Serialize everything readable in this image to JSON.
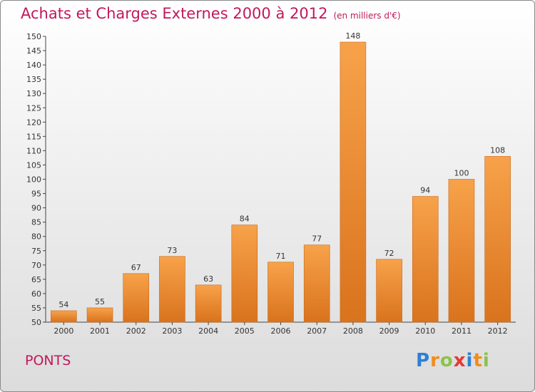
{
  "header": {
    "title": "Achats et Charges Externes 2000 à 2012",
    "unit": "(en milliers d'€)"
  },
  "footer": {
    "commune": "PONTS",
    "logo_letters": [
      "P",
      "r",
      "o",
      "x",
      "i",
      "t",
      "i"
    ],
    "logo_colors": [
      "#2e7fd6",
      "#f28c1e",
      "#8bc34a",
      "#e53935",
      "#2e7fd6",
      "#f28c1e",
      "#8bc34a"
    ]
  },
  "chart_data": {
    "type": "bar",
    "title": "Achats et Charges Externes 2000 à 2012",
    "subtitle": "(en milliers d'€)",
    "categories": [
      "2000",
      "2001",
      "2002",
      "2003",
      "2004",
      "2005",
      "2006",
      "2007",
      "2008",
      "2009",
      "2010",
      "2011",
      "2012"
    ],
    "values": [
      54,
      55,
      67,
      73,
      63,
      84,
      71,
      77,
      148,
      72,
      94,
      100,
      108
    ],
    "ylim": [
      50,
      150
    ],
    "ytick_step": 5,
    "grid": false,
    "bar_color_light": "#f7a24a",
    "bar_color_dark": "#d9731d"
  }
}
